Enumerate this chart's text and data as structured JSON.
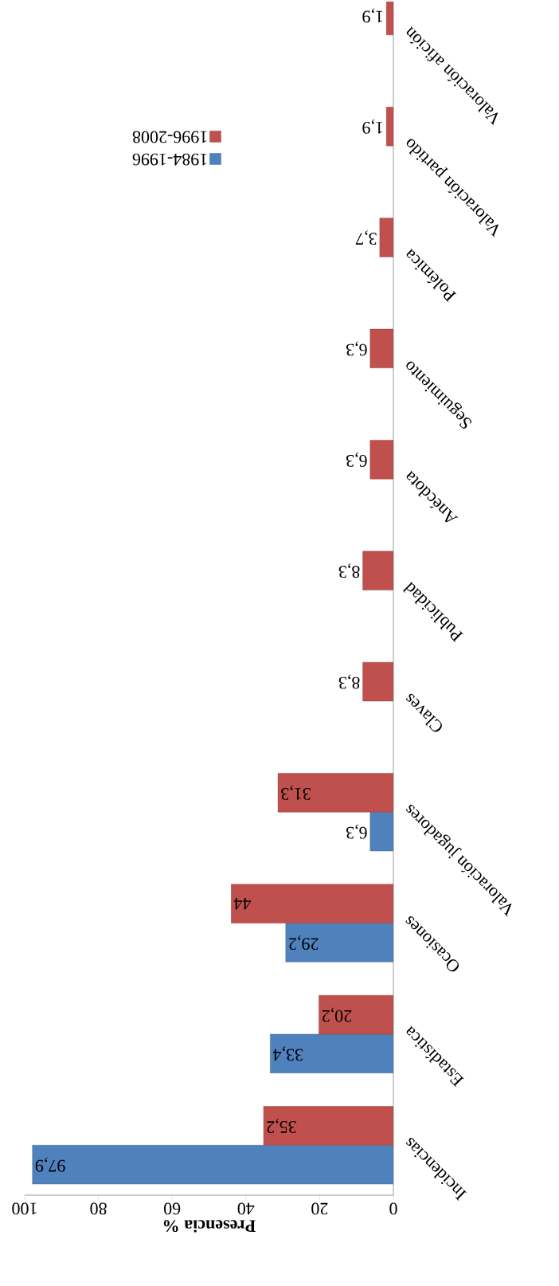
{
  "chart_data": {
    "type": "bar",
    "orientation": "horizontal",
    "xlabel": "Presencia %",
    "categories": [
      "Valoración afición",
      "Valoración partido",
      "Polémica",
      "Seguimiento",
      "Anécdota",
      "Publicidad",
      "Claves",
      "Valoración jugadores",
      "Ocasiones",
      "Estadística",
      "Incidencias"
    ],
    "series": [
      {
        "name": "1984-1996",
        "color": "#4f81bd",
        "values": [
          null,
          null,
          null,
          null,
          null,
          null,
          null,
          6.3,
          29.2,
          33.4,
          97.9
        ],
        "value_labels": [
          null,
          null,
          null,
          null,
          null,
          null,
          null,
          "6,3",
          "29,2",
          "33,4",
          "97,9"
        ]
      },
      {
        "name": "1996-2008",
        "color": "#c0504d",
        "values": [
          1.9,
          1.9,
          3.7,
          6.3,
          6.3,
          8.3,
          8.3,
          31.3,
          44,
          20.2,
          35.2
        ],
        "value_labels": [
          "1,9",
          "1,9",
          "3,7",
          "6,3",
          "6,3",
          "8,3",
          "8,3",
          "31,3",
          "44",
          "20,2",
          "35,2"
        ]
      }
    ],
    "xlim": [
      100,
      0
    ],
    "xticks": [
      0,
      20,
      40,
      60,
      80,
      100
    ],
    "grid": false,
    "legend": "top"
  }
}
